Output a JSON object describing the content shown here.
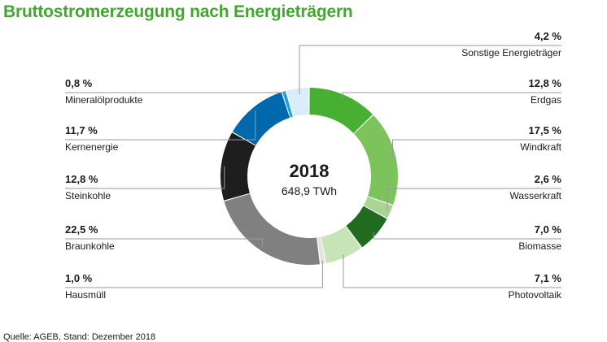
{
  "chart_data": {
    "type": "donut",
    "title": "Bruttostromerzeugung nach Energieträgern",
    "center_year": "2018",
    "center_total": "648,9 TWh",
    "unit": "%",
    "segments": [
      {
        "name": "Erdgas",
        "value": 12.8,
        "label": "12,8 %",
        "color": "#47b033",
        "side": "right"
      },
      {
        "name": "Windkraft",
        "value": 17.5,
        "label": "17,5 %",
        "color": "#7cc35b",
        "side": "right"
      },
      {
        "name": "Wasserkraft",
        "value": 2.6,
        "label": "2,6 %",
        "color": "#a9d592",
        "side": "right"
      },
      {
        "name": "Biomasse",
        "value": 7.0,
        "label": "7,0 %",
        "color": "#206b20",
        "side": "right"
      },
      {
        "name": "Photovoltaik",
        "value": 7.1,
        "label": "7,1 %",
        "color": "#c6e4b5",
        "side": "right"
      },
      {
        "name": "Hausmüll",
        "value": 1.0,
        "label": "1,0 %",
        "color": "#e3e3e3",
        "side": "left"
      },
      {
        "name": "Braunkohle",
        "value": 22.5,
        "label": "22,5 %",
        "color": "#808080",
        "side": "left"
      },
      {
        "name": "Steinkohle",
        "value": 12.8,
        "label": "12,8 %",
        "color": "#1e1e1e",
        "side": "left"
      },
      {
        "name": "Kernenergie",
        "value": 11.7,
        "label": "11,7 %",
        "color": "#0069ad",
        "side": "left"
      },
      {
        "name": "Mineralölprodukte",
        "value": 0.8,
        "label": "0,8 %",
        "color": "#1aa0d8",
        "side": "left"
      },
      {
        "name": "Sonstige Energieträger",
        "value": 4.2,
        "label": "4,2 %",
        "color": "#d9eef8",
        "side": "right"
      }
    ]
  },
  "source": "Quelle: AGEB, Stand: Dezember 2018"
}
